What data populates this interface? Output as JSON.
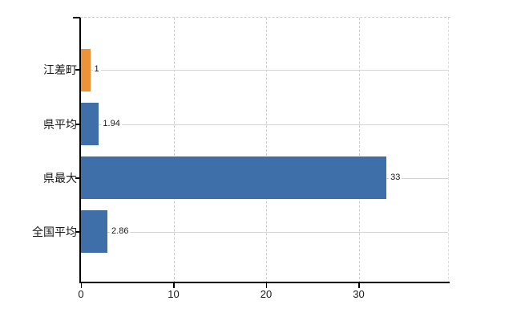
{
  "chart_data": {
    "type": "bar",
    "orientation": "horizontal",
    "title": "",
    "categories": [
      "江差町",
      "県平均",
      "県最大",
      "全国平均"
    ],
    "values": [
      1,
      1.94,
      33,
      2.86
    ],
    "value_labels": [
      "1",
      "1.94",
      "33",
      "2.86"
    ],
    "bar_colors": [
      "#EC9238",
      "#3E6FA9",
      "#3E6FA9",
      "#3E6FA9"
    ],
    "x_ticks": [
      0,
      10,
      20,
      30
    ],
    "x_tick_labels": [
      "0",
      "10",
      "20",
      "30"
    ],
    "xlim": [
      0,
      39.7
    ],
    "xlabel": "",
    "ylabel": "",
    "legend": null,
    "grid": {
      "vertical": "dashed",
      "horizontal": "solid-at-category-centers"
    }
  },
  "colors": {
    "bar_blue": "#3E6FA9",
    "bar_orange": "#EC9238",
    "axis": "#000000",
    "grid_solid": "#d4d4d4",
    "grid_dashed": "#cccccc",
    "text": "#1a1a1a",
    "background": "#ffffff"
  }
}
